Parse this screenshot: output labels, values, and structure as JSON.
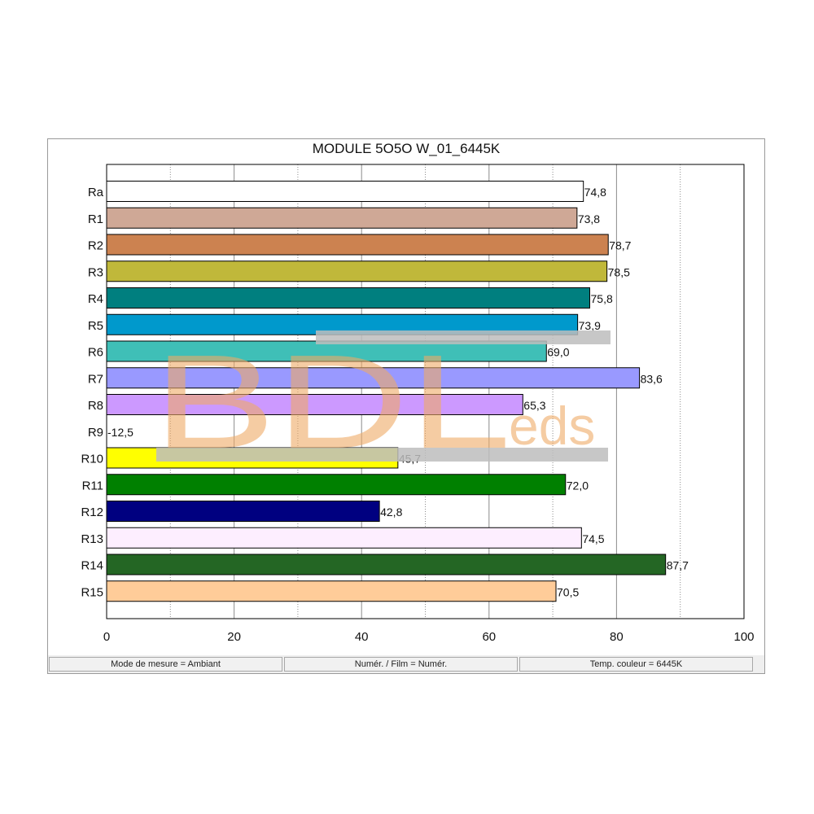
{
  "chart_data": {
    "type": "bar",
    "orientation": "horizontal",
    "title": "MODULE 5O5O W_01_6445K",
    "categories": [
      "Ra",
      "R1",
      "R2",
      "R3",
      "R4",
      "R5",
      "R6",
      "R7",
      "R8",
      "R9",
      "R10",
      "R11",
      "R12",
      "R13",
      "R14",
      "R15"
    ],
    "values": [
      74.8,
      73.8,
      78.7,
      78.5,
      75.8,
      73.9,
      69.0,
      83.6,
      65.3,
      -12.5,
      45.7,
      72.0,
      42.8,
      74.5,
      87.7,
      70.5
    ],
    "value_labels": [
      "74,8",
      "73,8",
      "78,7",
      "78,5",
      "75,8",
      "73,9",
      "69,0",
      "83,6",
      "65,3",
      "-12,5",
      "45,7",
      "72,0",
      "42,8",
      "74,5",
      "87,7",
      "70,5"
    ],
    "colors": [
      "#ffffff",
      "#cfa896",
      "#cc8250",
      "#c0b83a",
      "#007f7f",
      "#0099cc",
      "#3fbfb7",
      "#9999ff",
      "#cc99ff",
      "#ff0000",
      "#ffff00",
      "#008000",
      "#000080",
      "#fdeeff",
      "#246624",
      "#ffcc99"
    ],
    "xlim": [
      0,
      100
    ],
    "xticks": [
      0,
      20,
      40,
      60,
      80,
      100
    ],
    "xlabel": "",
    "ylabel": "",
    "grid": "vertical"
  },
  "status": {
    "mode": "Mode de mesure = Ambiant",
    "film": "Numér. / Film = Numér.",
    "temp": "Temp. couleur = 6445K"
  },
  "watermark": {
    "big": "BDL",
    "small": "eds",
    "color": "#eeaa66",
    "band_color": "#bdbdbd"
  }
}
